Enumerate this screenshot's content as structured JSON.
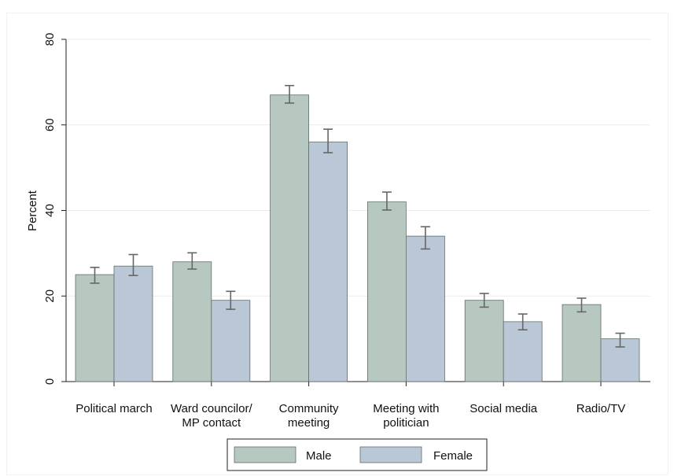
{
  "chart_data": {
    "type": "bar",
    "title": "",
    "xlabel": "",
    "ylabel": "Percent",
    "ylim": [
      0,
      80
    ],
    "yticks": [
      0,
      20,
      40,
      60,
      80
    ],
    "grid": true,
    "legend_position": "bottom",
    "categories": [
      [
        "Political march"
      ],
      [
        "Ward councilor/",
        "MP contact"
      ],
      [
        "Community",
        "meeting"
      ],
      [
        "Meeting with",
        "politician"
      ],
      [
        "Social media"
      ],
      [
        "Radio/TV"
      ]
    ],
    "series": [
      {
        "name": "Male",
        "color": "#b6c8c0",
        "values": [
          25,
          28,
          67,
          42,
          19,
          18
        ],
        "ci_low": [
          23,
          26.3,
          65.1,
          40.1,
          17.4,
          16.3
        ],
        "ci_high": [
          26.7,
          30.1,
          69.2,
          44.3,
          20.6,
          19.5
        ]
      },
      {
        "name": "Female",
        "color": "#bac7d6",
        "values": [
          27,
          19,
          56,
          34,
          14,
          10
        ],
        "ci_low": [
          24.8,
          16.9,
          53.5,
          31,
          12.1,
          8.1
        ],
        "ci_high": [
          29.7,
          21.1,
          59,
          36.2,
          15.8,
          11.3
        ]
      }
    ]
  }
}
